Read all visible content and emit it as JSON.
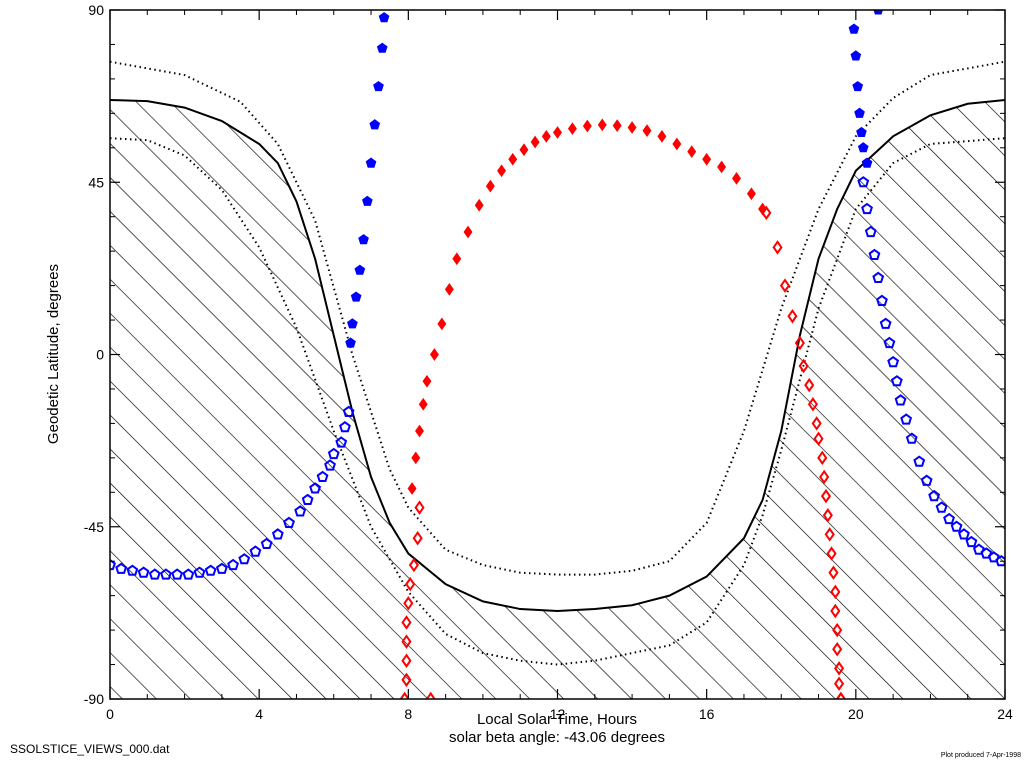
{
  "chart_data": {
    "type": "scatter",
    "xlabel": "Local Solar Time, Hours",
    "subtitle": "solar beta angle: -43.06 degrees",
    "ylabel": "Geodetic Latitude, degrees",
    "xlim": [
      0,
      24
    ],
    "ylim": [
      -90,
      90
    ],
    "x_ticks": [
      "0",
      "4",
      "8",
      "12",
      "16",
      "20",
      "24"
    ],
    "y_ticks": [
      "-90",
      "-45",
      "0",
      "45",
      "90"
    ],
    "grid": false,
    "colors": {
      "red": "#ff0000",
      "blue": "#0000ff",
      "black": "#000000"
    },
    "boundaries": {
      "solid_terminator": [
        [
          0,
          66.5
        ],
        [
          1,
          66.2
        ],
        [
          2,
          64.5
        ],
        [
          3,
          61
        ],
        [
          4,
          55
        ],
        [
          4.5,
          50
        ],
        [
          5,
          40
        ],
        [
          5.5,
          25
        ],
        [
          6,
          5
        ],
        [
          6.5,
          -15
        ],
        [
          7,
          -32
        ],
        [
          7.5,
          -44
        ],
        [
          8,
          -52
        ],
        [
          9,
          -60
        ],
        [
          10,
          -64.5
        ],
        [
          11,
          -66.5
        ],
        [
          12,
          -67
        ],
        [
          13,
          -66.5
        ],
        [
          14,
          -65.5
        ],
        [
          15,
          -63
        ],
        [
          16,
          -58
        ],
        [
          17,
          -48
        ],
        [
          17.5,
          -38
        ],
        [
          18,
          -20
        ],
        [
          18.5,
          5
        ],
        [
          19,
          25
        ],
        [
          19.5,
          38
        ],
        [
          20,
          48
        ],
        [
          21,
          57
        ],
        [
          22,
          62.5
        ],
        [
          23,
          65.5
        ],
        [
          24,
          66.5
        ]
      ],
      "dotted_upper": [
        [
          0,
          76.5
        ],
        [
          2,
          73
        ],
        [
          3.5,
          66
        ],
        [
          4.5,
          55
        ],
        [
          5.5,
          35
        ],
        [
          6.5,
          0
        ],
        [
          7.5,
          -30
        ],
        [
          8,
          -40
        ],
        [
          9,
          -51
        ],
        [
          10,
          -55
        ],
        [
          11,
          -57
        ],
        [
          12,
          -57.5
        ],
        [
          13,
          -57.5
        ],
        [
          14,
          -56.5
        ],
        [
          15,
          -54
        ],
        [
          16,
          -44
        ],
        [
          17,
          -20
        ],
        [
          18,
          12
        ],
        [
          19,
          38
        ],
        [
          20,
          57
        ],
        [
          21,
          67
        ],
        [
          22,
          73
        ],
        [
          24,
          76.5
        ]
      ],
      "dotted_lower": [
        [
          0,
          56.5
        ],
        [
          1,
          56
        ],
        [
          2,
          52
        ],
        [
          3,
          43
        ],
        [
          4,
          28
        ],
        [
          5,
          7
        ],
        [
          6,
          -20
        ],
        [
          7,
          -45
        ],
        [
          8,
          -62
        ],
        [
          9,
          -73
        ],
        [
          10,
          -78
        ],
        [
          11,
          -80
        ],
        [
          12,
          -81
        ],
        [
          13,
          -80
        ],
        [
          14,
          -78
        ],
        [
          15,
          -76
        ],
        [
          16,
          -70
        ],
        [
          17,
          -55
        ],
        [
          17.5,
          -42
        ],
        [
          18,
          -25
        ],
        [
          19,
          12
        ],
        [
          20,
          38
        ],
        [
          21,
          50
        ],
        [
          22,
          55
        ],
        [
          24,
          56.5
        ]
      ]
    },
    "series": [
      {
        "color": "#ff0000",
        "marker": "filled-diamond",
        "x": [
          8.1,
          8.2,
          8.3,
          8.4,
          8.5,
          8.7,
          8.9,
          9.1,
          9.3,
          9.6,
          9.9,
          10.2,
          10.5,
          10.8,
          11.1,
          11.4,
          11.7,
          12.0,
          12.4,
          12.8,
          13.2,
          13.6,
          14.0,
          14.4,
          14.8,
          15.2,
          15.6,
          16.0,
          16.4,
          16.8,
          17.2,
          17.5
        ],
        "y": [
          -35,
          -27,
          -20,
          -13,
          -7,
          0,
          8,
          17,
          25,
          32,
          39,
          44,
          48,
          51,
          53.5,
          55.5,
          57,
          58,
          59,
          59.7,
          60,
          59.8,
          59.3,
          58.5,
          57,
          55,
          53,
          51,
          49,
          46,
          42,
          38
        ]
      },
      {
        "color": "#ff0000",
        "marker": "open-diamond",
        "x": [
          8.3,
          8.25,
          8.15,
          8.05,
          8.0,
          7.95,
          7.95,
          7.95,
          7.95,
          7.9,
          8.6,
          17.6,
          17.9,
          18.1,
          18.3,
          18.5,
          18.6,
          18.75,
          18.85,
          18.95,
          19.0,
          19.1,
          19.15,
          19.2,
          19.25,
          19.3,
          19.35,
          19.4,
          19.45,
          19.45,
          19.5,
          19.5,
          19.55,
          19.55,
          19.6,
          19.6
        ],
        "y": [
          -40,
          -48,
          -55,
          -60,
          -65,
          -70,
          -75,
          -80,
          -85,
          -90,
          -90,
          37,
          28,
          18,
          10,
          3,
          -3,
          -8,
          -13,
          -18,
          -22,
          -27,
          -32,
          -37,
          -42,
          -47,
          -52,
          -57,
          -62,
          -67,
          -72,
          -77,
          -82,
          -86,
          -90,
          -90
        ]
      },
      {
        "color": "#0000ff",
        "marker": "filled-pentagon",
        "x": [
          7.35,
          7.3,
          7.2,
          7.1,
          7.0,
          6.9,
          6.8,
          6.7,
          6.6,
          6.5,
          6.45,
          19.95,
          20.0,
          20.05,
          20.1,
          20.15,
          20.2,
          20.3,
          20.6
        ],
        "y": [
          88,
          80,
          70,
          60,
          50,
          40,
          30,
          22,
          15,
          8,
          3,
          85,
          78,
          70,
          63,
          58,
          54,
          50,
          90
        ]
      },
      {
        "color": "#0000ff",
        "marker": "open-pentagon",
        "x": [
          0,
          0.3,
          0.6,
          0.9,
          1.2,
          1.5,
          1.8,
          2.1,
          2.4,
          2.7,
          3.0,
          3.3,
          3.6,
          3.9,
          4.2,
          4.5,
          4.8,
          5.1,
          5.3,
          5.5,
          5.7,
          5.9,
          6.0,
          6.2,
          6.3,
          6.4,
          20.2,
          20.3,
          20.4,
          20.5,
          20.6,
          20.7,
          20.8,
          20.9,
          21.0,
          21.1,
          21.2,
          21.35,
          21.5,
          21.7,
          21.9,
          22.1,
          22.3,
          22.5,
          22.7,
          22.9,
          23.1,
          23.3,
          23.5,
          23.7,
          23.9
        ],
        "y": [
          -55,
          -56,
          -56.5,
          -57,
          -57.5,
          -57.5,
          -57.5,
          -57.5,
          -57,
          -56.5,
          -56,
          -55,
          -53.5,
          -51.5,
          -49.5,
          -47,
          -44,
          -41,
          -38,
          -35,
          -32,
          -29,
          -26,
          -23,
          -19,
          -15,
          45,
          38,
          32,
          26,
          20,
          14,
          8,
          3,
          -2,
          -7,
          -12,
          -17,
          -22,
          -28,
          -33,
          -37,
          -40,
          -43,
          -45,
          -47,
          -49,
          -51,
          -52,
          -53,
          -54
        ]
      }
    ]
  },
  "footer": {
    "filename": "SSOLSTICE_VIEWS_000.dat",
    "produced": "Plot produced  7-Apr-1998"
  }
}
